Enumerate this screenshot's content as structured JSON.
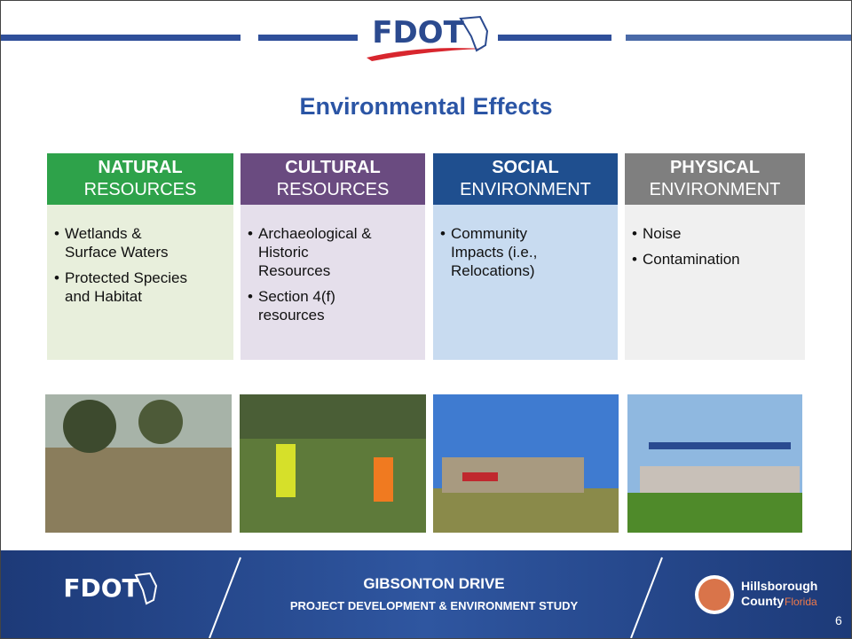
{
  "header": {
    "logo": "FDOT"
  },
  "title": "Environmental Effects",
  "columns": [
    {
      "heading": "NATURAL",
      "subheading": "RESOURCES",
      "items": [
        "Wetlands & Surface Waters",
        "Protected Species and Habitat"
      ]
    },
    {
      "heading": "CULTURAL",
      "subheading": "RESOURCES",
      "items": [
        "Archaeological & Historic Resources",
        "Section 4(f) resources"
      ]
    },
    {
      "heading": "SOCIAL",
      "subheading": "ENVIRONMENT",
      "items": [
        "Community Impacts (i.e., Relocations)"
      ]
    },
    {
      "heading": "PHYSICAL",
      "subheading": "ENVIRONMENT",
      "items": [
        "Noise",
        "Contamination"
      ]
    }
  ],
  "footer": {
    "logo": "FDOT",
    "title": "GIBSONTON DRIVE",
    "subtitle": "PROJECT DEVELOPMENT & ENVIRONMENT STUDY",
    "county": "Hillsborough",
    "county_line": "County",
    "state": "Florida",
    "page": "6"
  }
}
